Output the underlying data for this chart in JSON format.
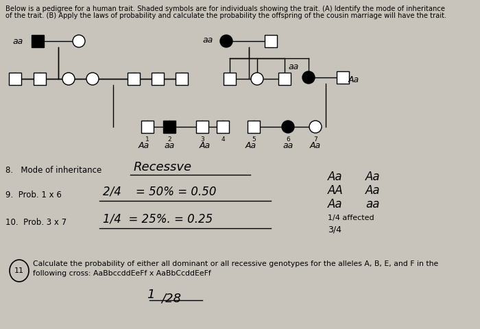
{
  "bg_color": "#c8c4bc",
  "paper_color": "#e8e4dc",
  "title_line1": "Below is a pedigree for a human trait. Shaded symbols are for individuals showing the trait. (A) Identify the mode of inheritance",
  "title_line2": "of the trait. (B) Apply the laws of probability and calculate the probability the offspring of the cousin marriage will have the trait.",
  "title_fontsize": 7.2,
  "q8_label": "8.   Mode of inheritance",
  "q8_answer": "Recessve",
  "q9_label": "9.  Prob. 1 x 6",
  "q9_answer": "2/4    = 50% = 0.50",
  "q10_label": "10.  Prob. 3 x 7",
  "q10_answer": "1/4  = 25%. = 0.25",
  "punnett": [
    "Aa",
    "Aa",
    "AA",
    "Aa",
    "Aa",
    "aa"
  ],
  "affected": "1/4 affected",
  "fraction": "3/4",
  "q11_text1": "Calculate the probability of either all dominant or all recessive genotypes for the alleles A, B, E, and F in the",
  "q11_text2": "following cross: AaBbccddEeFf x AaBbCcddEeFf",
  "q11_answer": "1/28"
}
